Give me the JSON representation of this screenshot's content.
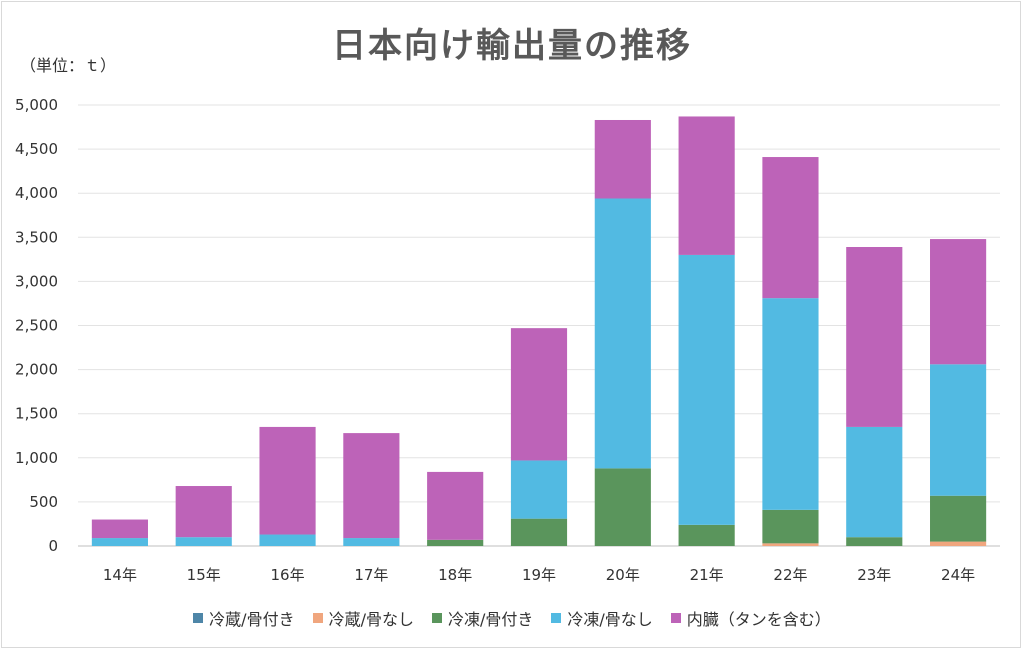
{
  "chart_data": {
    "type": "bar",
    "stacked": true,
    "title": "日本向け輸出量の推移",
    "unit_label": "（単位：ｔ）",
    "categories": [
      "14年",
      "15年",
      "16年",
      "17年",
      "18年",
      "19年",
      "20年",
      "21年",
      "22年",
      "23年",
      "24年"
    ],
    "ylim": [
      0,
      5000
    ],
    "yticks": [
      "0",
      "500",
      "1,000",
      "1,500",
      "2,000",
      "2,500",
      "3,000",
      "3,500",
      "4,000",
      "4,500",
      "5,000"
    ],
    "ytick_values": [
      0,
      500,
      1000,
      1500,
      2000,
      2500,
      3000,
      3500,
      4000,
      4500,
      5000
    ],
    "grid": true,
    "legend_position": "bottom",
    "series": [
      {
        "name": "冷蔵/骨付き",
        "color": "#4e86a8",
        "values": [
          0,
          0,
          0,
          0,
          0,
          0,
          0,
          0,
          0,
          0,
          0
        ]
      },
      {
        "name": "冷蔵/骨なし",
        "color": "#f0a67e",
        "values": [
          0,
          0,
          0,
          0,
          0,
          0,
          0,
          0,
          30,
          0,
          50
        ]
      },
      {
        "name": "冷凍/骨付き",
        "color": "#5a955c",
        "values": [
          0,
          0,
          0,
          0,
          70,
          310,
          880,
          240,
          380,
          100,
          520
        ]
      },
      {
        "name": "冷凍/骨なし",
        "color": "#52bae2",
        "values": [
          90,
          100,
          130,
          90,
          0,
          660,
          3060,
          3060,
          2400,
          1250,
          1490
        ]
      },
      {
        "name": "内臓（タンを含む）",
        "color": "#bd63b8",
        "values": [
          210,
          580,
          1220,
          1190,
          770,
          1500,
          890,
          1570,
          1600,
          2040,
          1420
        ]
      }
    ]
  }
}
